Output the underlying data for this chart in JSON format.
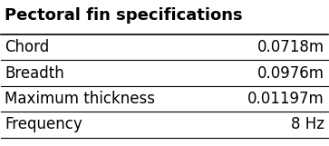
{
  "title": "Pectoral fin specifications",
  "rows": [
    [
      "Chord",
      "0.0718m"
    ],
    [
      "Breadth",
      "0.0976m"
    ],
    [
      "Maximum thickness",
      "0.01197m"
    ],
    [
      "Frequency",
      "8 Hz"
    ]
  ],
  "bg_color": "#ffffff",
  "text_color": "#000000",
  "title_fontsize": 13,
  "body_fontsize": 12,
  "figsize": [
    3.63,
    1.61
  ],
  "dpi": 100
}
